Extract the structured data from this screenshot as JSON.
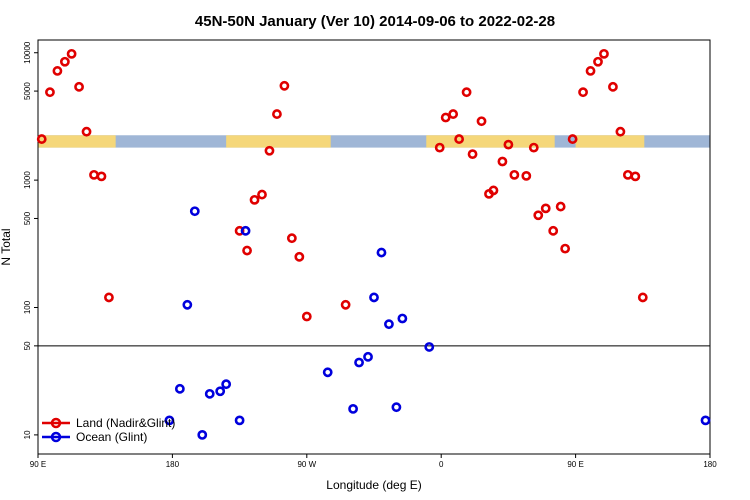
{
  "colors": {
    "land": "#e00000",
    "ocean": "#0000dd",
    "map_land": "#f5d77a",
    "map_ocean": "#9fb6d6"
  },
  "chart_data": {
    "type": "scatter",
    "title": "45N-50N January (Ver 10)   2014-09-06 to 2022-02-28",
    "xlabel": "Longitude (deg E)",
    "ylabel": "N Total",
    "yscale": "log",
    "xlim": [
      90,
      540
    ],
    "ylim_log10": [
      0.85,
      4.1
    ],
    "x_ticks": [
      {
        "pos": 90,
        "label": "90 E"
      },
      {
        "pos": 180,
        "label": "180"
      },
      {
        "pos": 270,
        "label": "90 W"
      },
      {
        "pos": 360,
        "label": "0"
      },
      {
        "pos": 450,
        "label": "90 E"
      },
      {
        "pos": 540,
        "label": "180"
      }
    ],
    "y_ticks": [
      {
        "value": 10,
        "label": "10"
      },
      {
        "value": 50,
        "label": "50"
      },
      {
        "value": 100,
        "label": "100"
      },
      {
        "value": 500,
        "label": "500"
      },
      {
        "value": 1000,
        "label": "1000"
      },
      {
        "value": 5000,
        "label": "5000"
      },
      {
        "value": 10000,
        "label": "10000"
      }
    ],
    "reference_line": 50,
    "map_band": {
      "y_low": 1800,
      "y_high": 2250
    },
    "legend": {
      "position": "bottom-left",
      "entries": [
        "Land (Nadir&Glint)",
        "Ocean (Glint)"
      ]
    },
    "series": [
      {
        "name": "Land (Nadir&Glint)",
        "points": [
          [
            92.5,
            2100
          ],
          [
            98,
            4900
          ],
          [
            103,
            7200
          ],
          [
            108,
            8500
          ],
          [
            112.5,
            9800
          ],
          [
            117.5,
            5400
          ],
          [
            122.5,
            2400
          ],
          [
            127.5,
            1100
          ],
          [
            132.5,
            1070
          ],
          [
            137.5,
            120
          ],
          [
            240,
            770
          ],
          [
            245,
            1700
          ],
          [
            250,
            3300
          ],
          [
            255,
            5500
          ],
          [
            225,
            400
          ],
          [
            230,
            280
          ],
          [
            235,
            700
          ],
          [
            260,
            350
          ],
          [
            265,
            250
          ],
          [
            270,
            85
          ],
          [
            296,
            105
          ],
          [
            359,
            1800
          ],
          [
            363,
            3100
          ],
          [
            368,
            3300
          ],
          [
            372,
            2100
          ],
          [
            377,
            4900
          ],
          [
            381,
            1600
          ],
          [
            387,
            2900
          ],
          [
            392,
            780
          ],
          [
            395,
            830
          ],
          [
            401,
            1400
          ],
          [
            405,
            1900
          ],
          [
            409,
            1100
          ],
          [
            417,
            1080
          ],
          [
            422,
            1800
          ],
          [
            425,
            530
          ],
          [
            430,
            600
          ],
          [
            435,
            400
          ],
          [
            440,
            620
          ],
          [
            443,
            290
          ],
          [
            448,
            2100
          ],
          [
            455,
            4900
          ],
          [
            460,
            7200
          ],
          [
            465,
            8500
          ],
          [
            469,
            9800
          ],
          [
            475,
            5400
          ],
          [
            480,
            2400
          ],
          [
            485,
            1100
          ],
          [
            490,
            1070
          ],
          [
            495,
            120
          ]
        ]
      },
      {
        "name": "Ocean (Glint)",
        "points": [
          [
            178,
            13
          ],
          [
            185,
            23
          ],
          [
            190,
            105
          ],
          [
            195,
            570
          ],
          [
            200,
            10
          ],
          [
            205,
            21
          ],
          [
            212,
            22
          ],
          [
            216,
            25
          ],
          [
            225,
            13
          ],
          [
            229,
            400
          ],
          [
            284,
            31
          ],
          [
            301,
            16
          ],
          [
            305,
            37
          ],
          [
            311,
            41
          ],
          [
            315,
            120
          ],
          [
            320,
            270
          ],
          [
            325,
            74
          ],
          [
            330,
            16.5
          ],
          [
            334,
            82
          ],
          [
            352,
            49
          ],
          [
            537,
            13
          ]
        ]
      }
    ]
  }
}
